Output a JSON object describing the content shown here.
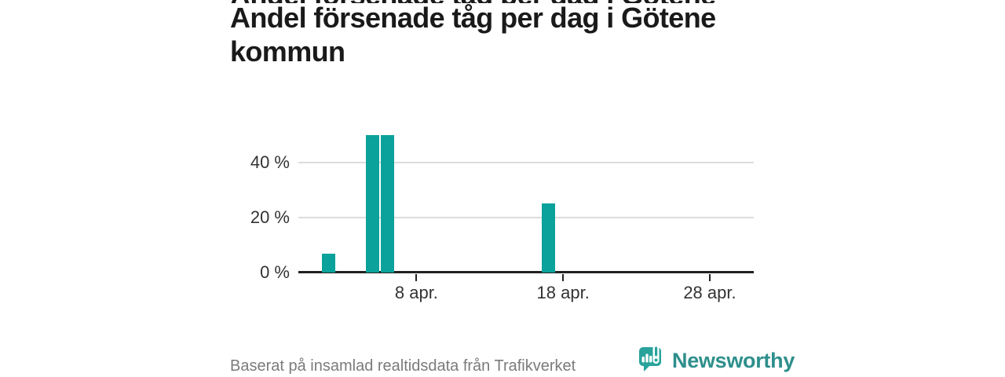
{
  "title": {
    "full": "Andel försenade tåg per dag i Götene kommun",
    "line1": "Andel försenade tåg per dag i Götene",
    "line2": "kommun"
  },
  "footer": {
    "source_text": "Baserat på insamlad realtidsdata från Trafikverket"
  },
  "brand": {
    "name": "Newsworthy",
    "icon": "speech-bubble-bar-chart-icon",
    "icon_color": "#27a39c",
    "text_color": "#2e8f8c"
  },
  "colors": {
    "title": "#1a1a1a",
    "footer_text": "#7b7b7b",
    "background": "#ffffff"
  },
  "chart_data": {
    "type": "bar",
    "title": "Andel försenade tåg per dag i Götene kommun",
    "xlabel": "",
    "ylabel": "",
    "unit": "%",
    "x_month": "apr.",
    "x_domain_days": 31,
    "ylim": [
      0,
      53.4
    ],
    "grid": "horizontal",
    "legend": "none",
    "bars": [
      {
        "day": 2,
        "label": "2 apr.",
        "value": 7
      },
      {
        "day": 5,
        "label": "5 apr.",
        "value": 50
      },
      {
        "day": 6,
        "label": "6 apr.",
        "value": 50
      },
      {
        "day": 17,
        "label": "17 apr.",
        "value": 25
      }
    ],
    "xticks": [
      {
        "day": 8,
        "label": "8 apr."
      },
      {
        "day": 18,
        "label": "18 apr."
      },
      {
        "day": 28,
        "label": "28 apr."
      }
    ],
    "yticks": [
      {
        "value": 0,
        "label": "0 %"
      },
      {
        "value": 20,
        "label": "20 %"
      },
      {
        "value": 40,
        "label": "40 %"
      }
    ],
    "bar_color": "#0aa29b",
    "axis_color": "#222222",
    "grid_color": "#dcdcdc",
    "tick_label_color": "#333333"
  }
}
